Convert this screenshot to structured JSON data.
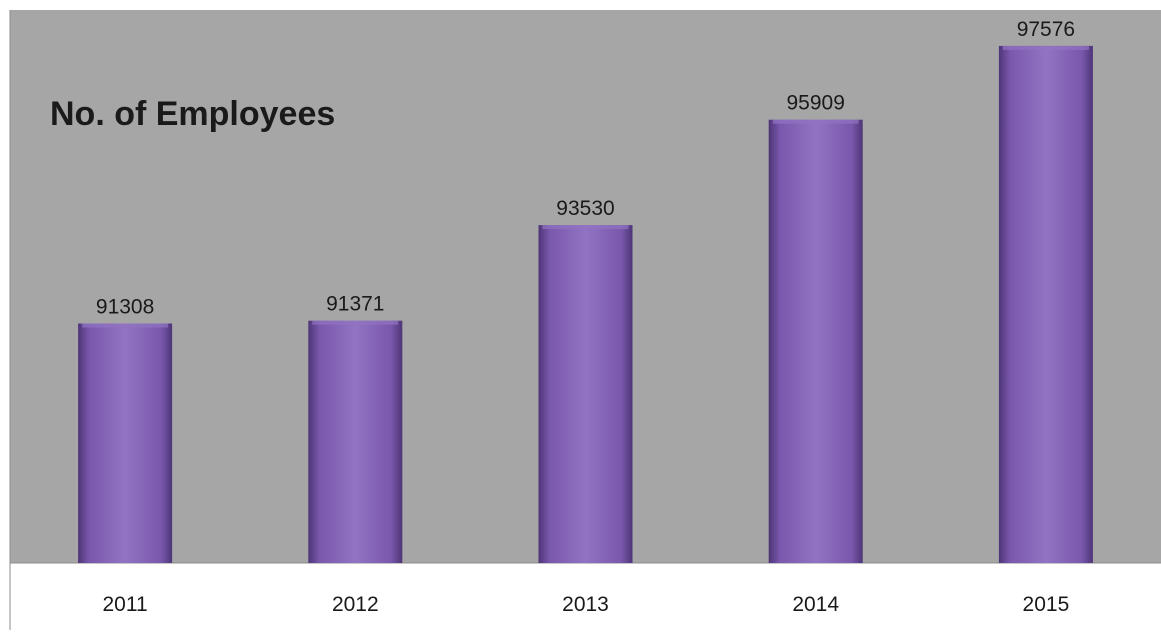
{
  "chart_data": {
    "type": "bar",
    "title": "No. of Employees",
    "categories": [
      "2011",
      "2012",
      "2013",
      "2014",
      "2015"
    ],
    "values": [
      91308,
      91371,
      93530,
      95909,
      97576
    ],
    "data_labels": [
      "91308",
      "91371",
      "93530",
      "95909",
      "97576"
    ],
    "xlabel": "",
    "ylabel": "",
    "ylim": [
      85900,
      97800
    ],
    "grid": false,
    "legend": "none",
    "colors": {
      "plot_background": "#a6a6a6",
      "bar_fill": "#7a58ad",
      "bar_highlight": "#9273c2",
      "bar_shadow": "#4e3577",
      "axis_line": "#8c8c8c",
      "text": "#1a1a1a"
    }
  }
}
